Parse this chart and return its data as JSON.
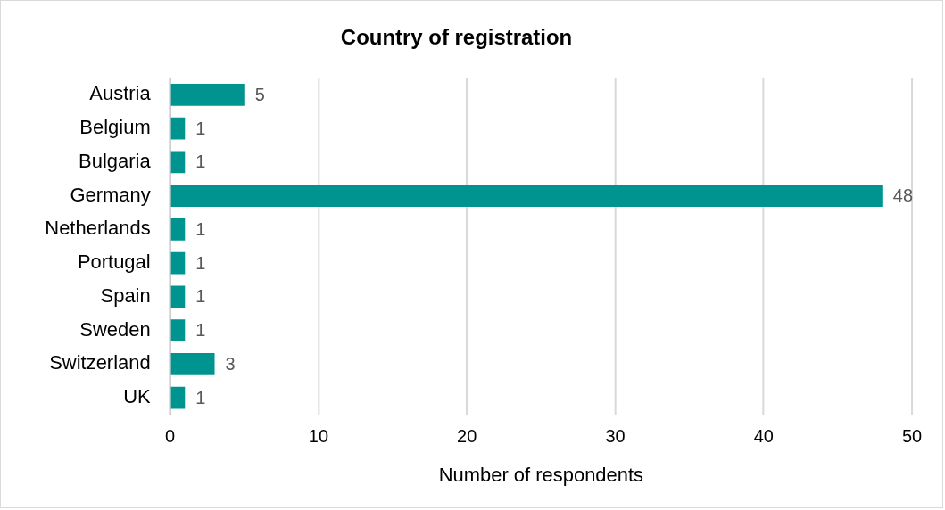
{
  "chart_data": {
    "type": "bar",
    "orientation": "horizontal",
    "title": "Country of registration",
    "xlabel": "Number of respondents",
    "categories": [
      "Austria",
      "Belgium",
      "Bulgaria",
      "Germany",
      "Netherlands",
      "Portugal",
      "Spain",
      "Sweden",
      "Switzerland",
      "UK"
    ],
    "values": [
      5,
      1,
      1,
      48,
      1,
      1,
      1,
      1,
      3,
      1
    ],
    "color": "#009490",
    "xlim": [
      0,
      50
    ],
    "xticks": [
      0,
      10,
      20,
      30,
      40,
      50
    ],
    "grid": "x",
    "data_labels": true
  }
}
